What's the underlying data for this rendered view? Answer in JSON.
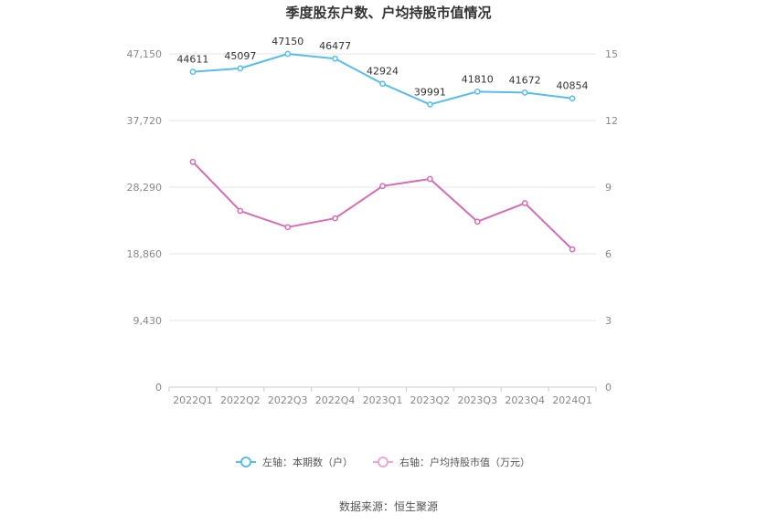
{
  "chart_data": {
    "type": "line",
    "title": "季度股东户数、户均持股市值情况",
    "categories": [
      "2022Q1",
      "2022Q2",
      "2022Q3",
      "2022Q4",
      "2023Q1",
      "2023Q2",
      "2023Q3",
      "2023Q4",
      "2024Q1"
    ],
    "left_axis": {
      "min": 0,
      "max": 47150,
      "ticks": [
        "0",
        "9,430",
        "18,860",
        "28,290",
        "37,720",
        "47,150"
      ]
    },
    "right_axis": {
      "min": 0,
      "max": 15,
      "ticks": [
        "0",
        "3",
        "6",
        "9",
        "12",
        "15"
      ]
    },
    "series": [
      {
        "name": "左轴：本期数（户）",
        "axis": "left",
        "color": "#5bbcec",
        "values": [
          44611,
          45097,
          47150,
          46477,
          42924,
          39991,
          41810,
          41672,
          40854
        ],
        "labels": [
          "44611",
          "45097",
          "47150",
          "46477",
          "42924",
          "39991",
          "41810",
          "41672",
          "40854"
        ]
      },
      {
        "name": "右轴：户均持股市值（万元）",
        "axis": "right",
        "color": "#d36eb4",
        "values": [
          10.14,
          7.93,
          7.2,
          7.6,
          9.05,
          9.37,
          7.45,
          8.28,
          6.2
        ]
      }
    ],
    "grid": true,
    "legend_position": "bottom"
  },
  "source": "数据来源：恒生聚源"
}
